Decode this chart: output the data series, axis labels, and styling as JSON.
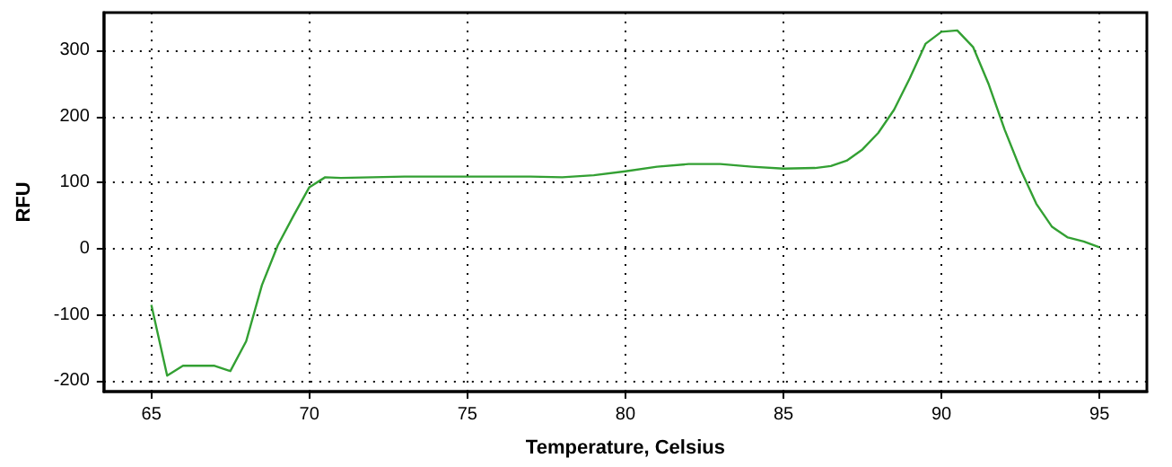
{
  "chart_data": {
    "type": "line",
    "xlabel": "Temperature, Celsius",
    "ylabel": "RFU",
    "x": [
      65,
      65.5,
      66,
      66.5,
      67,
      67.5,
      68,
      68.5,
      69,
      69.5,
      70,
      70.5,
      71,
      72,
      73,
      74,
      75,
      76,
      77,
      78,
      79,
      80,
      81,
      82,
      83,
      84,
      85,
      86,
      86.5,
      87,
      87.5,
      88,
      88.5,
      89,
      89.5,
      90,
      90.5,
      91,
      91.5,
      92,
      92.5,
      93,
      93.5,
      94,
      94.5,
      95
    ],
    "series": [
      {
        "color": "#33a033",
        "values": [
          -85,
          -192,
          -177,
          -177,
          -177,
          -185,
          -140,
          -55,
          5,
          50,
          93,
          108,
          107,
          108,
          109,
          109,
          109,
          109,
          109,
          108,
          111,
          117,
          124,
          128,
          128,
          124,
          121,
          122,
          125,
          133,
          150,
          175,
          210,
          258,
          310,
          328,
          330,
          305,
          248,
          180,
          120,
          68,
          33,
          17,
          11,
          2
        ]
      }
    ],
    "xlim": [
      63.5,
      96.5
    ],
    "xticks": [
      65,
      70,
      75,
      80,
      85,
      90,
      95
    ],
    "ylim": [
      -216,
      357
    ],
    "yticks": [
      -200,
      -100,
      0,
      100,
      200,
      300
    ],
    "grid": true,
    "marker": "none",
    "line_style": "solid"
  }
}
